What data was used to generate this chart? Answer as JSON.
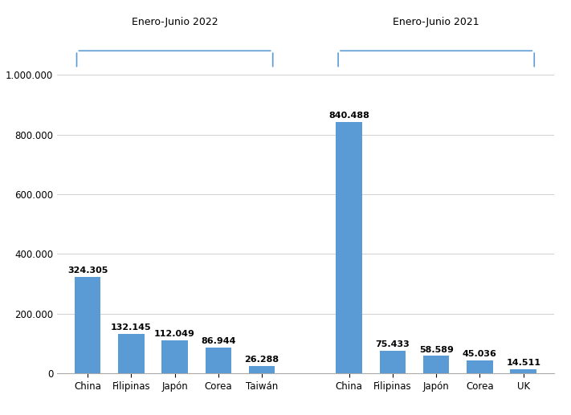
{
  "group1_label": "Enero-Junio 2022",
  "group2_label": "Enero-Junio 2021",
  "group1_categories": [
    "China",
    "Filipinas",
    "Japón",
    "Corea",
    "Taiwán"
  ],
  "group1_values": [
    324305,
    132145,
    112049,
    86944,
    26288
  ],
  "group1_labels": [
    "324.305",
    "132.145",
    "112.049",
    "86.944",
    "26.288"
  ],
  "group2_categories": [
    "China",
    "Filipinas",
    "Japón",
    "Corea",
    "UK"
  ],
  "group2_values": [
    840488,
    75433,
    58589,
    45036,
    14511
  ],
  "group2_labels": [
    "840.488",
    "75.433",
    "58.589",
    "45.036",
    "14.511"
  ],
  "bar_color": "#5B9BD5",
  "ytick_labels": [
    "0",
    "200.000",
    "400.000",
    "600.000",
    "800.000",
    "1.000.000"
  ],
  "ytick_values": [
    0,
    200000,
    400000,
    600000,
    800000,
    1000000
  ],
  "ylim": [
    0,
    1000000
  ],
  "background_color": "#ffffff",
  "group_label_fontsize": 9,
  "bar_label_fontsize": 8,
  "tick_label_fontsize": 8.5,
  "annotation_fontweight": "bold",
  "bracket_color": "#5B9BD5"
}
